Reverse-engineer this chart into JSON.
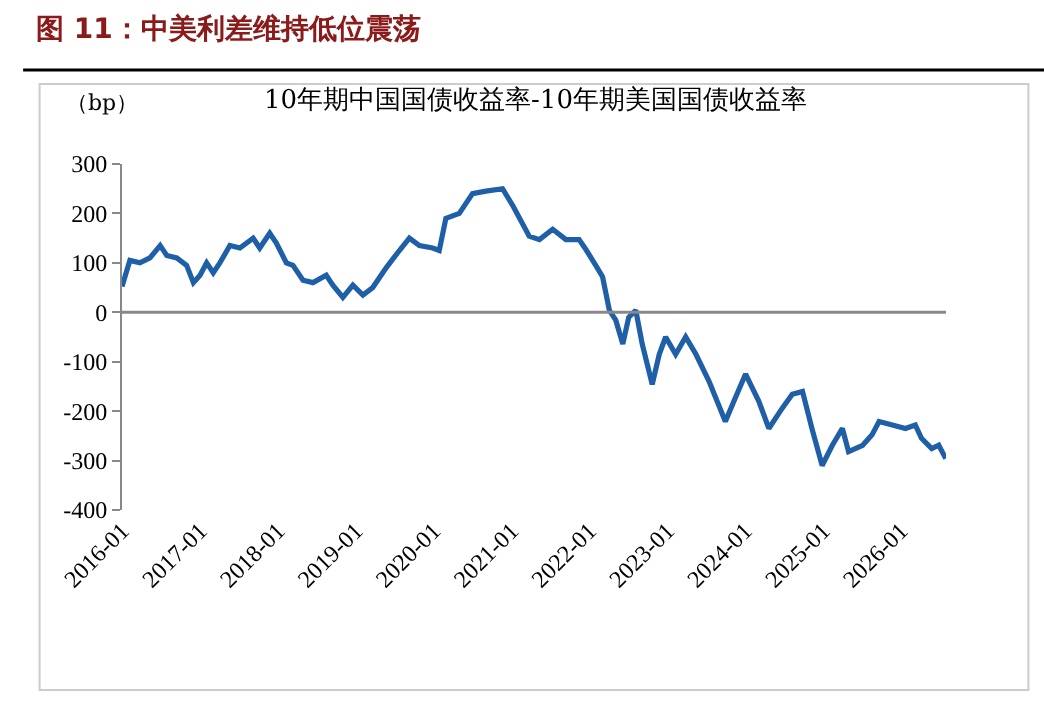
{
  "chart_data": {
    "type": "line",
    "title": "图 11：中美利差维持低位震荡",
    "subtitle": "10年期中国国债收益率-10年期美国国债收益率",
    "ylabel": "（bp）",
    "x": [
      "2016-01-01",
      "2016-02-07",
      "2016-03-25",
      "2016-05-11",
      "2016-06-28",
      "2016-07-29",
      "2016-09-14",
      "2016-10-30",
      "2016-12-01",
      "2017-01-01",
      "2017-02-01",
      "2017-03-04",
      "2017-04-04",
      "2017-05-21",
      "2017-07-07",
      "2017-09-07",
      "2017-10-08",
      "2017-11-24",
      "2017-12-25",
      "2018-02-10",
      "2018-03-13",
      "2018-04-29",
      "2018-06-15",
      "2018-08-16",
      "2018-09-16",
      "2018-11-02",
      "2018-12-19",
      "2019-02-04",
      "2019-03-22",
      "2019-05-24",
      "2019-07-25",
      "2019-09-10",
      "2019-10-27",
      "2019-12-28",
      "2020-01-28",
      "2020-02-28",
      "2020-05-01",
      "2020-07-02",
      "2020-09-03",
      "2020-11-20",
      "2021-01-08",
      "2021-03-25",
      "2021-05-12",
      "2021-07-13",
      "2021-09-13",
      "2021-11-14",
      "2021-12-16",
      "2022-02-03",
      "2022-03-04",
      "2022-04-05",
      "2022-05-05",
      "2022-06-07",
      "2022-07-05",
      "2022-08-07",
      "2022-09-06",
      "2022-10-23",
      "2022-11-25",
      "2022-12-25",
      "2023-02-10",
      "2023-03-29",
      "2023-05-16",
      "2023-07-16",
      "2023-10-01",
      "2023-11-17",
      "2024-01-04",
      "2024-03-06",
      "2024-04-22",
      "2024-06-24",
      "2024-08-10",
      "2024-09-27",
      "2024-11-10",
      "2024-12-28",
      "2025-02-14",
      "2025-04-02",
      "2025-05-01",
      "2025-07-06",
      "2025-08-19",
      "2025-09-21",
      "2025-11-22",
      "2026-01-23",
      "2026-03-10",
      "2026-04-08",
      "2026-05-26",
      "2026-06-28",
      "2026-07-31"
    ],
    "series": [
      {
        "color": "#1f5fa8",
        "values": [
          52,
          105,
          100,
          110,
          135,
          115,
          110,
          95,
          60,
          75,
          100,
          80,
          100,
          135,
          130,
          150,
          130,
          160,
          140,
          100,
          95,
          65,
          60,
          75,
          55,
          30,
          55,
          35,
          50,
          90,
          125,
          150,
          135,
          130,
          125,
          190,
          200,
          240,
          245,
          250,
          215,
          154,
          147,
          168,
          147,
          147,
          127,
          93,
          72,
          4,
          -16,
          -64,
          -10,
          4,
          -64,
          -146,
          -85,
          -50,
          -85,
          -50,
          -85,
          -139,
          -221,
          -173,
          -125,
          -180,
          -235,
          -194,
          -166,
          -160,
          -235,
          -310,
          -269,
          -235,
          -282,
          -269,
          -248,
          -221,
          -228,
          -235,
          -228,
          -255,
          -276,
          -269,
          -296
        ]
      }
    ],
    "xlim": [
      "2016-01-01",
      "2026-08-01"
    ],
    "xticks": [
      {
        "value": "2016-01-01",
        "label": "2016-01"
      },
      {
        "value": "2017-01-01",
        "label": "2017-01"
      },
      {
        "value": "2018-01-01",
        "label": "2018-01"
      },
      {
        "value": "2019-01-01",
        "label": "2019-01"
      },
      {
        "value": "2020-01-01",
        "label": "2020-01"
      },
      {
        "value": "2021-01-01",
        "label": "2021-01"
      },
      {
        "value": "2022-01-01",
        "label": "2022-01"
      },
      {
        "value": "2023-01-01",
        "label": "2023-01"
      },
      {
        "value": "2024-01-01",
        "label": "2024-01"
      },
      {
        "value": "2025-01-01",
        "label": "2025-01"
      },
      {
        "value": "2026-01-01",
        "label": "2026-01"
      }
    ],
    "ylim": [
      -400,
      300
    ],
    "yticks": [
      -400,
      -300,
      -200,
      -100,
      0,
      100,
      200,
      300
    ],
    "ref_lines": [
      {
        "axis": "y",
        "value": 0,
        "color": "#888888",
        "line_style": "solid"
      }
    ],
    "grid": false,
    "marker": "none",
    "line_style": "solid"
  }
}
